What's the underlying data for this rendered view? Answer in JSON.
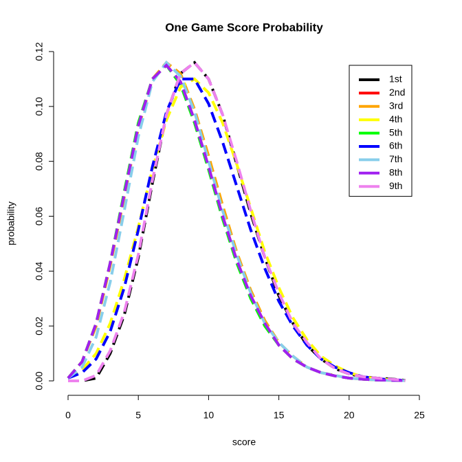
{
  "chart_data": {
    "type": "line",
    "title": "One Game Score Probability",
    "x_label": "score",
    "y_label": "probability",
    "x": [
      0,
      1,
      2,
      3,
      4,
      5,
      6,
      7,
      8,
      9,
      10,
      11,
      12,
      13,
      14,
      15,
      16,
      17,
      18,
      19,
      20,
      21,
      22,
      23,
      24
    ],
    "xlim": [
      0,
      25
    ],
    "xticks": [
      0,
      5,
      10,
      15,
      20,
      25
    ],
    "ylim": [
      0,
      0.12
    ],
    "yticks": [
      {
        "value": 0,
        "label": "0.00"
      },
      {
        "value": 0.02,
        "label": "0.02"
      },
      {
        "value": 0.04,
        "label": "0.04"
      },
      {
        "value": 0.06,
        "label": "0.06"
      },
      {
        "value": 0.08,
        "label": "0.08"
      },
      {
        "value": 0.1,
        "label": "0.10"
      },
      {
        "value": 0.12,
        "label": "0.12"
      }
    ],
    "legend_position": "top-right",
    "series": [
      {
        "name": "1st",
        "color": "#000000",
        "values": [
          0,
          0,
          0.001,
          0.01,
          0.024,
          0.045,
          0.072,
          0.097,
          0.112,
          0.116,
          0.11,
          0.097,
          0.079,
          0.061,
          0.045,
          0.031,
          0.021,
          0.013,
          0.008,
          0.0045,
          0.0025,
          0.0015,
          0.001,
          0.0007,
          0.0002
        ]
      },
      {
        "name": "2nd",
        "color": "#ff0000",
        "values": [
          0.001,
          0.007,
          0.021,
          0.043,
          0.068,
          0.093,
          0.11,
          0.115,
          0.109,
          0.095,
          0.078,
          0.06,
          0.044,
          0.031,
          0.021,
          0.013,
          0.008,
          0.005,
          0.003,
          0.0018,
          0.001,
          0.0006,
          0.0003,
          0.0002,
          0.0001
        ]
      },
      {
        "name": "3rd",
        "color": "#ffa500",
        "values": [
          0.001,
          0.007,
          0.02,
          0.042,
          0.067,
          0.092,
          0.11,
          0.116,
          0.112,
          0.099,
          0.082,
          0.064,
          0.047,
          0.033,
          0.022,
          0.014,
          0.009,
          0.005,
          0.003,
          0.002,
          0.001,
          0.0006,
          0.0003,
          0.0002,
          0.0001
        ]
      },
      {
        "name": "4th",
        "color": "#ffff00",
        "values": [
          0.001,
          0.004,
          0.01,
          0.021,
          0.037,
          0.056,
          0.077,
          0.095,
          0.107,
          0.11,
          0.105,
          0.094,
          0.079,
          0.063,
          0.047,
          0.034,
          0.023,
          0.015,
          0.009,
          0.0055,
          0.003,
          0.0015,
          0.0008,
          0.0004,
          0.0001
        ]
      },
      {
        "name": "5th",
        "color": "#00ff00",
        "values": [
          0.001,
          0.007,
          0.021,
          0.043,
          0.069,
          0.094,
          0.11,
          0.115,
          0.108,
          0.094,
          0.077,
          0.059,
          0.043,
          0.03,
          0.02,
          0.013,
          0.008,
          0.005,
          0.003,
          0.0018,
          0.001,
          0.0006,
          0.0003,
          0.0002,
          0.0001
        ]
      },
      {
        "name": "6th",
        "color": "#0000ff",
        "values": [
          0.001,
          0.003,
          0.008,
          0.018,
          0.034,
          0.055,
          0.078,
          0.098,
          0.11,
          0.11,
          0.101,
          0.087,
          0.071,
          0.055,
          0.041,
          0.029,
          0.02,
          0.013,
          0.008,
          0.005,
          0.003,
          0.0015,
          0.0008,
          0.0004,
          0.0002
        ]
      },
      {
        "name": "7th",
        "color": "#87ceeb",
        "values": [
          0.001,
          0.005,
          0.016,
          0.036,
          0.062,
          0.089,
          0.109,
          0.116,
          0.111,
          0.098,
          0.08,
          0.062,
          0.046,
          0.032,
          0.021,
          0.014,
          0.009,
          0.005,
          0.003,
          0.002,
          0.001,
          0.0006,
          0.0003,
          0.0002,
          0.0001
        ]
      },
      {
        "name": "8th",
        "color": "#a020f0",
        "values": [
          0.001,
          0.007,
          0.021,
          0.043,
          0.068,
          0.093,
          0.11,
          0.115,
          0.109,
          0.095,
          0.078,
          0.06,
          0.044,
          0.031,
          0.021,
          0.013,
          0.008,
          0.005,
          0.003,
          0.0018,
          0.001,
          0.0006,
          0.0003,
          0.0002,
          0.0001
        ]
      },
      {
        "name": "9th",
        "color": "#ee82ee",
        "values": [
          0,
          0,
          0.002,
          0.011,
          0.025,
          0.046,
          0.073,
          0.097,
          0.112,
          0.116,
          0.11,
          0.097,
          0.08,
          0.062,
          0.045,
          0.032,
          0.021,
          0.014,
          0.008,
          0.0045,
          0.0025,
          0.0015,
          0.001,
          0.0006,
          0.0002
        ]
      }
    ]
  }
}
